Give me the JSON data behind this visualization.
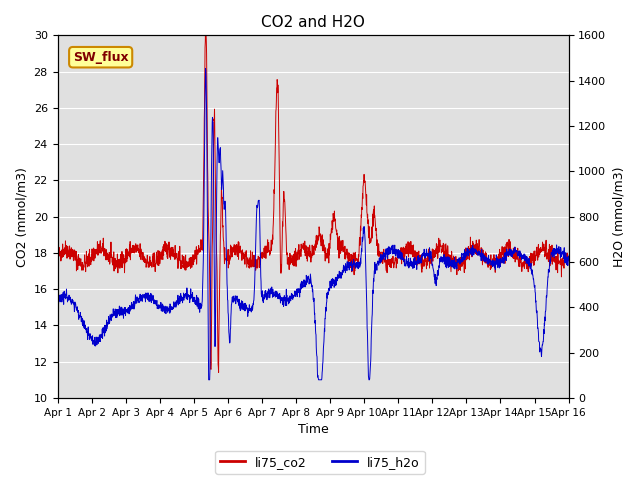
{
  "title": "CO2 and H2O",
  "xlabel": "Time",
  "ylabel_left": "CO2 (mmol/m3)",
  "ylabel_right": "H2O (mmol/m3)",
  "ylim_left": [
    10,
    30
  ],
  "ylim_right": [
    0,
    1600
  ],
  "yticks_left": [
    10,
    12,
    14,
    16,
    18,
    20,
    22,
    24,
    26,
    28,
    30
  ],
  "yticks_right": [
    0,
    200,
    400,
    600,
    800,
    1000,
    1200,
    1400,
    1600
  ],
  "xtick_labels": [
    "Apr 1",
    "Apr 2",
    "Apr 3",
    "Apr 4",
    "Apr 5",
    "Apr 6",
    "Apr 7",
    "Apr 8",
    "Apr 9",
    "Apr 10",
    "Apr 11",
    "Apr 12",
    "Apr 13",
    "Apr 14",
    "Apr 15",
    "Apr 16"
  ],
  "color_co2": "#cc0000",
  "color_h2o": "#0000cc",
  "label_co2": "li75_co2",
  "label_h2o": "li75_h2o",
  "sw_flux_label": "SW_flux",
  "sw_flux_bg": "#ffff99",
  "sw_flux_border": "#cc8800",
  "sw_flux_text_color": "#800000",
  "plot_bg": "#e0e0e0",
  "fig_bg": "#ffffff",
  "n_points": 2000,
  "seed": 42
}
